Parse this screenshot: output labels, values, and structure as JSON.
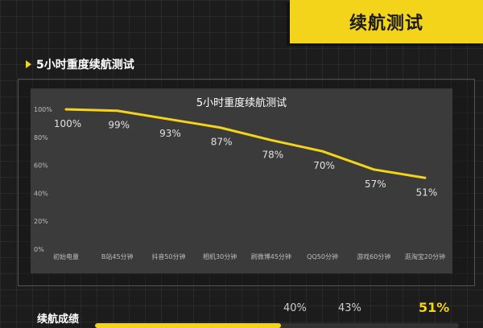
{
  "banner": {
    "title": "续航测试"
  },
  "section": {
    "title": "5小时重度续航测试"
  },
  "chart_data": {
    "type": "line",
    "title": "5小时重度续航测试",
    "categories": [
      "初始电量",
      "B站45分钟",
      "抖音50分钟",
      "相机30分钟",
      "刷微博45分钟",
      "QQ50分钟",
      "游戏60分钟",
      "逛淘宝20分钟"
    ],
    "values": [
      100,
      99,
      93,
      87,
      78,
      70,
      57,
      51
    ],
    "data_labels": [
      "100%",
      "99%",
      "93%",
      "87%",
      "78%",
      "70%",
      "57%",
      "51%"
    ],
    "y_ticks": [
      "0%",
      "20%",
      "40%",
      "60%",
      "80%",
      "100%"
    ],
    "ylim": [
      0,
      100
    ],
    "grid": false,
    "line_color": "#f3d41b"
  },
  "score": {
    "label": "续航成绩",
    "values": [
      "40%",
      "43%",
      "51%"
    ],
    "fill": 51,
    "colors": {
      "accent": "#f3d41b"
    }
  }
}
